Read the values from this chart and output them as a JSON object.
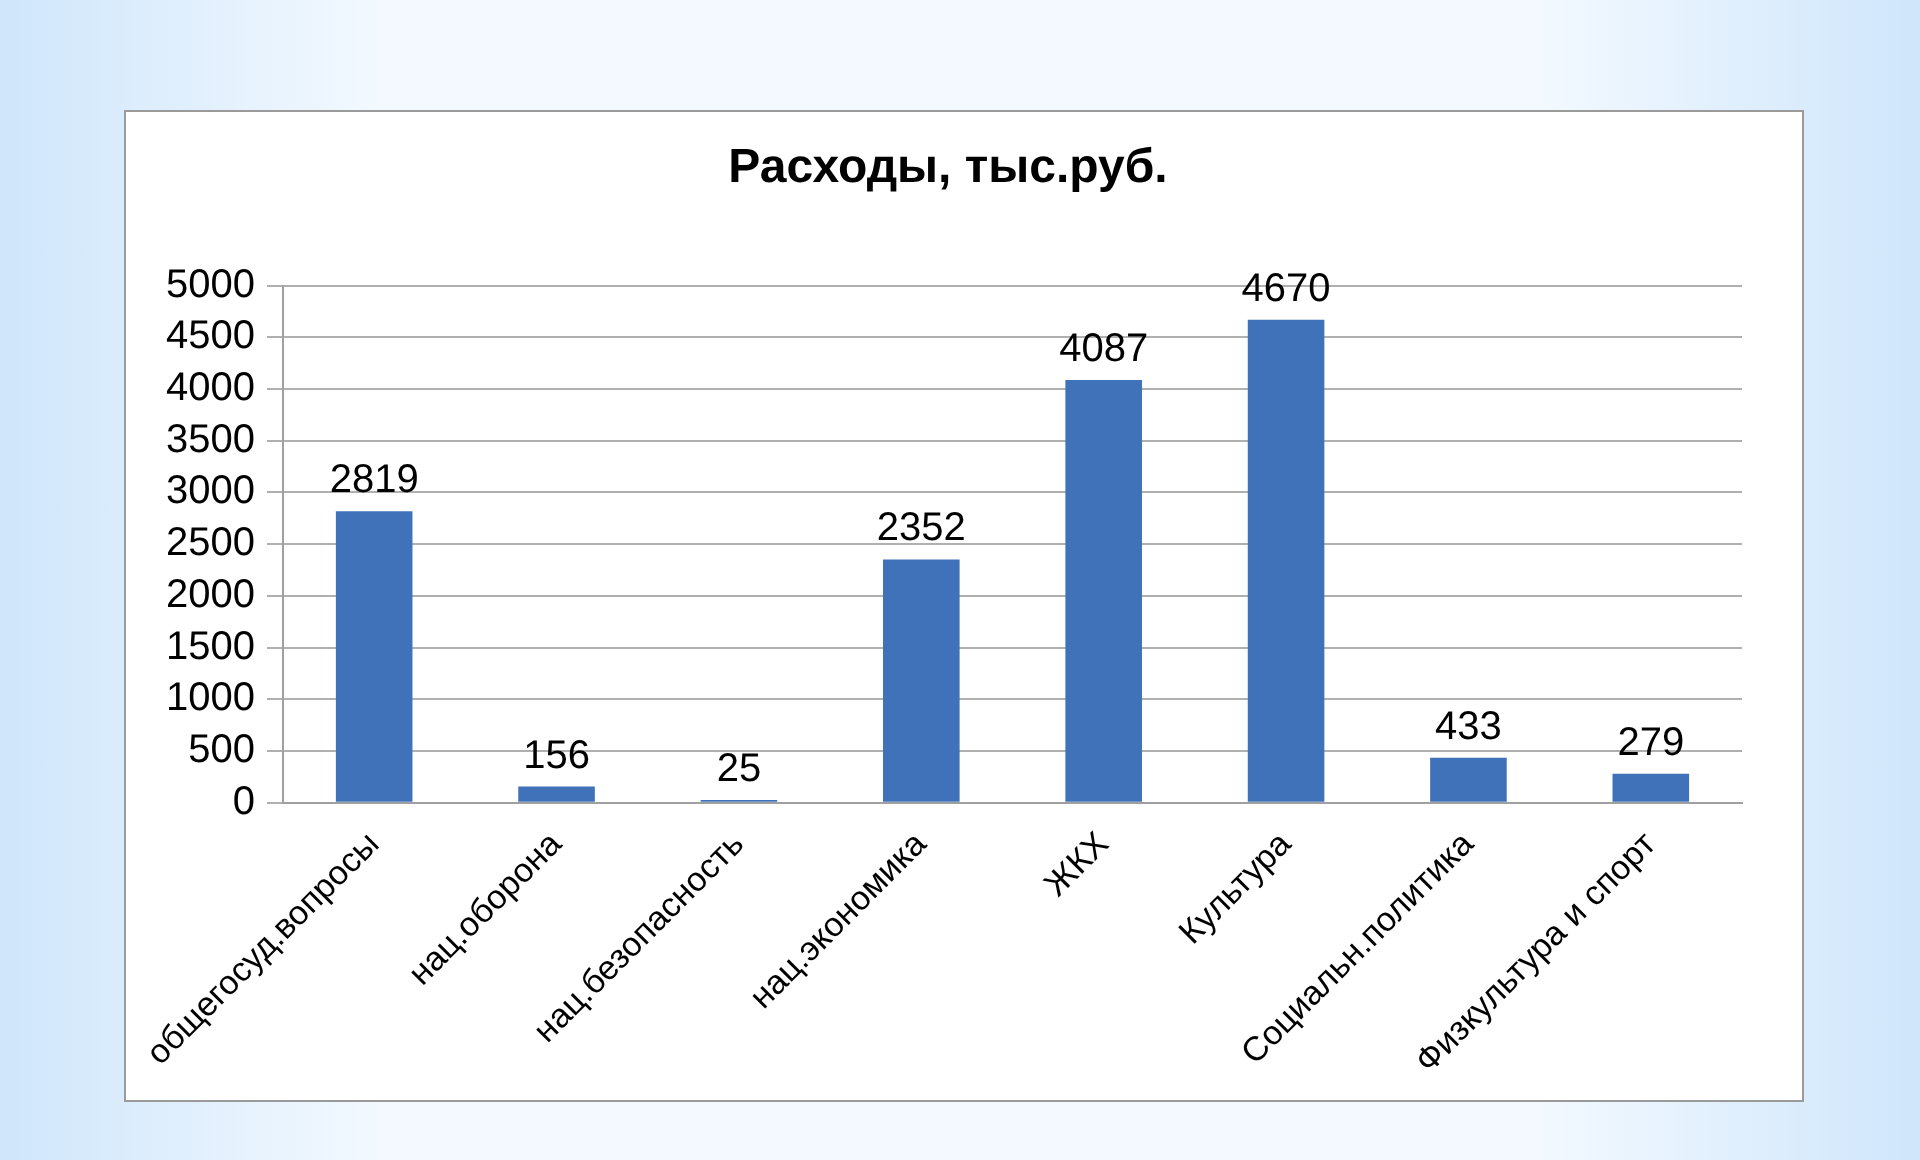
{
  "chart_data": {
    "type": "bar",
    "title": "Расходы, тыс.руб.",
    "categories": [
      "общегосуд.вопросы",
      "нац.оборона",
      "нац.безопасность",
      "нац.экономика",
      "ЖКХ",
      "Культура",
      "Социальн.политика",
      "Физкультура и спорт"
    ],
    "values": [
      2819,
      156,
      25,
      2352,
      4087,
      4670,
      433,
      279
    ],
    "color": "#3f72b8",
    "ylim": [
      0,
      5000
    ],
    "yticks": [
      0,
      500,
      1000,
      1500,
      2000,
      2500,
      3000,
      3500,
      4000,
      4500,
      5000
    ],
    "grid": "y",
    "data_labels": true
  }
}
